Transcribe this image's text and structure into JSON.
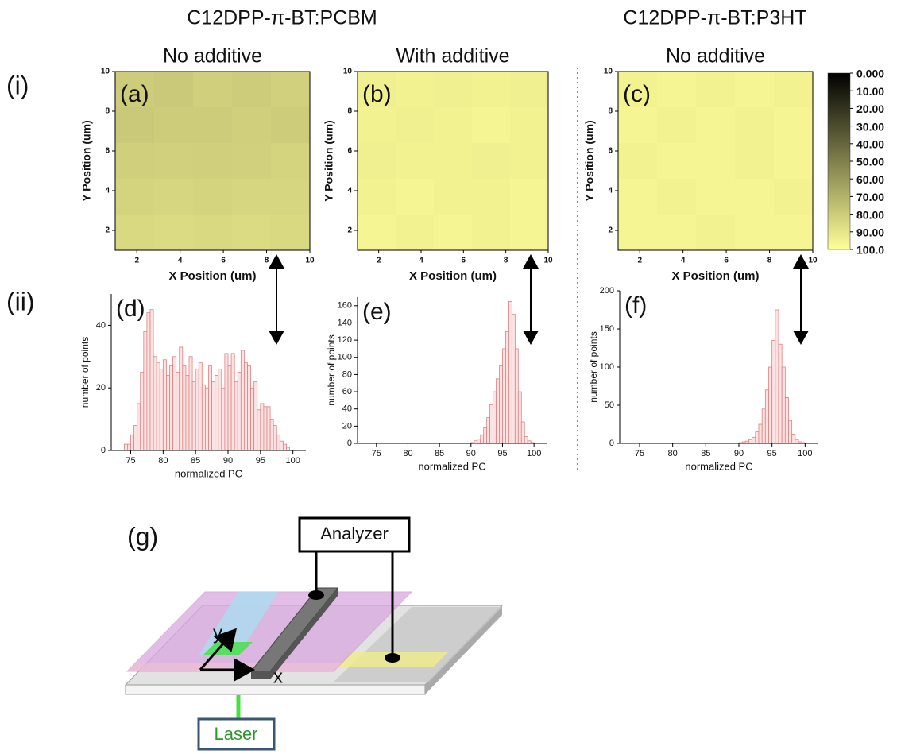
{
  "headers": [
    "C12DPP-π-BT:PCBM",
    "C12DPP-π-BT:P3HT"
  ],
  "row_labels": [
    "(i)",
    "(ii)"
  ],
  "chart_data": [
    {
      "type": "heatmap",
      "label": "(a)",
      "subtitle": "No additive",
      "xlabel": "X Position (um)",
      "ylabel": "Y Position (um)",
      "xlim": [
        1,
        10
      ],
      "ylim": [
        1,
        10
      ],
      "xticks": [
        2,
        4,
        6,
        8,
        10
      ],
      "yticks": [
        2,
        4,
        6,
        8,
        10
      ],
      "clim": [
        0,
        100
      ],
      "colors": [
        "#000000",
        "#ffff99"
      ],
      "values": [
        [
          80,
          79,
          81,
          80,
          82
        ],
        [
          79,
          80,
          80,
          81,
          80
        ],
        [
          81,
          82,
          81,
          82,
          83
        ],
        [
          83,
          84,
          83,
          84,
          84
        ],
        [
          85,
          86,
          85,
          86,
          85
        ]
      ]
    },
    {
      "type": "heatmap",
      "label": "(b)",
      "subtitle": "With additive",
      "xlabel": "X Position (um)",
      "ylabel": "Y Position (um)",
      "xlim": [
        1,
        10
      ],
      "ylim": [
        1,
        10
      ],
      "xticks": [
        2,
        4,
        6,
        8,
        10
      ],
      "yticks": [
        2,
        4,
        6,
        8,
        10
      ],
      "clim": [
        0,
        100
      ],
      "colors": [
        "#000000",
        "#ffff99"
      ],
      "values": [
        [
          94,
          95,
          94,
          95,
          94
        ],
        [
          95,
          94,
          95,
          96,
          95
        ],
        [
          94,
          95,
          95,
          94,
          95
        ],
        [
          95,
          96,
          95,
          95,
          96
        ],
        [
          96,
          95,
          96,
          95,
          96
        ]
      ]
    },
    {
      "type": "heatmap",
      "label": "(c)",
      "subtitle": "No additive",
      "xlabel": "X Position (um)",
      "ylabel": "Y Position (um)",
      "xlim": [
        1,
        10
      ],
      "ylim": [
        1,
        10
      ],
      "xticks": [
        2,
        4,
        6,
        8,
        10
      ],
      "yticks": [
        2,
        4,
        6,
        8,
        10
      ],
      "clim": [
        0,
        100
      ],
      "colors": [
        "#000000",
        "#ffff99"
      ],
      "values": [
        [
          95,
          96,
          95,
          96,
          95
        ],
        [
          96,
          95,
          96,
          95,
          96
        ],
        [
          95,
          96,
          96,
          95,
          96
        ],
        [
          96,
          95,
          96,
          96,
          95
        ],
        [
          96,
          96,
          95,
          96,
          96
        ]
      ]
    },
    {
      "type": "histogram",
      "label": "(d)",
      "xlabel": "normalized PC",
      "ylabel": "number of points",
      "color": "#e08080",
      "xlim": [
        72,
        102
      ],
      "ylim": [
        0,
        50
      ],
      "xticks": [
        75,
        80,
        85,
        90,
        95,
        100
      ],
      "yticks": [
        0,
        20,
        40
      ],
      "bins": [
        74,
        74.5,
        75,
        75.5,
        76,
        76.5,
        77,
        77.5,
        78,
        78.5,
        79,
        79.5,
        80,
        80.5,
        81,
        81.5,
        82,
        82.5,
        83,
        83.5,
        84,
        84.5,
        85,
        85.5,
        86,
        86.5,
        87,
        87.5,
        88,
        88.5,
        89,
        89.5,
        90,
        90.5,
        91,
        91.5,
        92,
        92.5,
        93,
        93.5,
        94,
        94.5,
        95,
        95.5,
        96,
        96.5,
        97,
        97.5,
        98,
        98.5,
        99,
        99.5,
        100
      ],
      "values": [
        2,
        2,
        5,
        8,
        15,
        25,
        38,
        44,
        45,
        30,
        28,
        26,
        29,
        24,
        27,
        30,
        25,
        33,
        27,
        24,
        30,
        22,
        26,
        28,
        21,
        20,
        27,
        22,
        24,
        26,
        20,
        31,
        27,
        31,
        22,
        25,
        32,
        28,
        27,
        20,
        22,
        13,
        15,
        14,
        14,
        10,
        8,
        5,
        3,
        2,
        1,
        0
      ]
    },
    {
      "type": "histogram",
      "label": "(e)",
      "xlabel": "normalized PC",
      "ylabel": "number of points",
      "color": "#e08080",
      "xlim": [
        72,
        102
      ],
      "ylim": [
        0,
        170
      ],
      "xticks": [
        75,
        80,
        85,
        90,
        95,
        100
      ],
      "yticks": [
        0,
        20,
        40,
        60,
        80,
        100,
        120,
        140,
        160
      ],
      "bins": [
        90,
        90.5,
        91,
        91.5,
        92,
        92.5,
        93,
        93.5,
        94,
        94.5,
        95,
        95.5,
        96,
        96.5,
        97,
        97.5,
        98,
        98.5,
        99,
        99.5,
        100
      ],
      "values": [
        1,
        3,
        5,
        10,
        18,
        30,
        45,
        60,
        75,
        90,
        110,
        130,
        165,
        150,
        110,
        60,
        25,
        8,
        3,
        1
      ]
    },
    {
      "type": "histogram",
      "label": "(f)",
      "xlabel": "normalized PC",
      "ylabel": "number of points",
      "color": "#e08080",
      "xlim": [
        72,
        102
      ],
      "ylim": [
        0,
        200
      ],
      "xticks": [
        75,
        80,
        85,
        90,
        95,
        100
      ],
      "yticks": [
        0,
        50,
        100,
        150,
        200
      ],
      "bins": [
        90,
        90.5,
        91,
        91.5,
        92,
        92.5,
        93,
        93.5,
        94,
        94.5,
        95,
        95.5,
        96,
        96.5,
        97,
        97.5,
        98,
        98.5,
        99,
        99.5,
        100
      ],
      "values": [
        1,
        2,
        3,
        5,
        8,
        15,
        25,
        45,
        70,
        100,
        135,
        175,
        130,
        100,
        60,
        30,
        12,
        5,
        2,
        1
      ]
    }
  ],
  "colorbar": {
    "lim": [
      0,
      100
    ],
    "colors": [
      "#000000",
      "#ffff99"
    ],
    "ticks": [
      {
        "value": 0,
        "label": "0.000"
      },
      {
        "value": 10,
        "label": "10.00"
      },
      {
        "value": 20,
        "label": "20.00"
      },
      {
        "value": 30,
        "label": "30.00"
      },
      {
        "value": 40,
        "label": "40.00"
      },
      {
        "value": 50,
        "label": "50.00"
      },
      {
        "value": 60,
        "label": "60.00"
      },
      {
        "value": 70,
        "label": "70.00"
      },
      {
        "value": 80,
        "label": "80.00"
      },
      {
        "value": 90,
        "label": "90.00"
      },
      {
        "value": 100,
        "label": "100.0"
      }
    ]
  },
  "diagram": {
    "label": "(g)",
    "analyzer": "Analyzer",
    "laser": "Laser",
    "x_axis": "x",
    "y_axis": "y"
  }
}
